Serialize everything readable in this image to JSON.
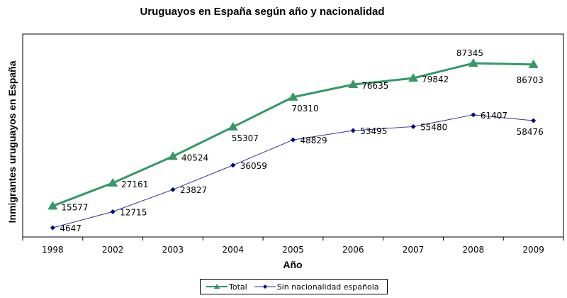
{
  "chart_data": {
    "type": "line",
    "title": "Uruguayos en España según año y nacionalidad",
    "xlabel": "Año",
    "ylabel": "Inmigrantes uruguayos en España",
    "categories": [
      "1998",
      "2002",
      "2003",
      "2004",
      "2005",
      "2006",
      "2007",
      "2008",
      "2009"
    ],
    "ylim": [
      0,
      102000
    ],
    "grid": false,
    "legend_position": "bottom",
    "series": [
      {
        "name": "Total",
        "color": "#339966",
        "marker": "triangle",
        "values": [
          15577,
          27161,
          40524,
          55307,
          70310,
          76635,
          79842,
          87345,
          86703
        ]
      },
      {
        "name": "Sin nacionalidad española",
        "color": "#333399",
        "marker": "diamond",
        "values": [
          4647,
          12715,
          23827,
          36059,
          48829,
          53495,
          55480,
          61407,
          58476
        ]
      }
    ]
  }
}
